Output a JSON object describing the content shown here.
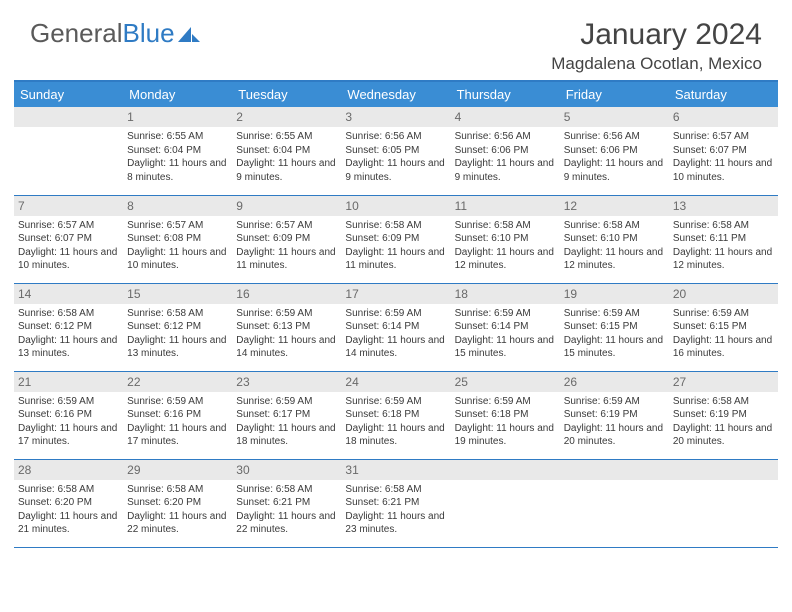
{
  "brand": {
    "part1": "General",
    "part2": "Blue"
  },
  "title": "January 2024",
  "location": "Magdalena Ocotlan, Mexico",
  "styling": {
    "brand_color": "#2f7bc4",
    "header_bg": "#3a8dd4",
    "header_text": "#ffffff",
    "daynum_bg": "#e9e9e9",
    "daynum_text": "#6a6a6a",
    "body_text": "#3a3a3a",
    "cal_border": "#2f7bc4",
    "page_bg": "#ffffff",
    "month_title_fontsize": 30,
    "location_fontsize": 17,
    "th_fontsize": 13,
    "cell_fontsize": 10,
    "daynum_fontsize": 12
  },
  "weekdays": [
    "Sunday",
    "Monday",
    "Tuesday",
    "Wednesday",
    "Thursday",
    "Friday",
    "Saturday"
  ],
  "weeks": [
    [
      null,
      {
        "n": "1",
        "sr": "Sunrise: 6:55 AM",
        "ss": "Sunset: 6:04 PM",
        "dl": "Daylight: 11 hours and 8 minutes."
      },
      {
        "n": "2",
        "sr": "Sunrise: 6:55 AM",
        "ss": "Sunset: 6:04 PM",
        "dl": "Daylight: 11 hours and 9 minutes."
      },
      {
        "n": "3",
        "sr": "Sunrise: 6:56 AM",
        "ss": "Sunset: 6:05 PM",
        "dl": "Daylight: 11 hours and 9 minutes."
      },
      {
        "n": "4",
        "sr": "Sunrise: 6:56 AM",
        "ss": "Sunset: 6:06 PM",
        "dl": "Daylight: 11 hours and 9 minutes."
      },
      {
        "n": "5",
        "sr": "Sunrise: 6:56 AM",
        "ss": "Sunset: 6:06 PM",
        "dl": "Daylight: 11 hours and 9 minutes."
      },
      {
        "n": "6",
        "sr": "Sunrise: 6:57 AM",
        "ss": "Sunset: 6:07 PM",
        "dl": "Daylight: 11 hours and 10 minutes."
      }
    ],
    [
      {
        "n": "7",
        "sr": "Sunrise: 6:57 AM",
        "ss": "Sunset: 6:07 PM",
        "dl": "Daylight: 11 hours and 10 minutes."
      },
      {
        "n": "8",
        "sr": "Sunrise: 6:57 AM",
        "ss": "Sunset: 6:08 PM",
        "dl": "Daylight: 11 hours and 10 minutes."
      },
      {
        "n": "9",
        "sr": "Sunrise: 6:57 AM",
        "ss": "Sunset: 6:09 PM",
        "dl": "Daylight: 11 hours and 11 minutes."
      },
      {
        "n": "10",
        "sr": "Sunrise: 6:58 AM",
        "ss": "Sunset: 6:09 PM",
        "dl": "Daylight: 11 hours and 11 minutes."
      },
      {
        "n": "11",
        "sr": "Sunrise: 6:58 AM",
        "ss": "Sunset: 6:10 PM",
        "dl": "Daylight: 11 hours and 12 minutes."
      },
      {
        "n": "12",
        "sr": "Sunrise: 6:58 AM",
        "ss": "Sunset: 6:10 PM",
        "dl": "Daylight: 11 hours and 12 minutes."
      },
      {
        "n": "13",
        "sr": "Sunrise: 6:58 AM",
        "ss": "Sunset: 6:11 PM",
        "dl": "Daylight: 11 hours and 12 minutes."
      }
    ],
    [
      {
        "n": "14",
        "sr": "Sunrise: 6:58 AM",
        "ss": "Sunset: 6:12 PM",
        "dl": "Daylight: 11 hours and 13 minutes."
      },
      {
        "n": "15",
        "sr": "Sunrise: 6:58 AM",
        "ss": "Sunset: 6:12 PM",
        "dl": "Daylight: 11 hours and 13 minutes."
      },
      {
        "n": "16",
        "sr": "Sunrise: 6:59 AM",
        "ss": "Sunset: 6:13 PM",
        "dl": "Daylight: 11 hours and 14 minutes."
      },
      {
        "n": "17",
        "sr": "Sunrise: 6:59 AM",
        "ss": "Sunset: 6:14 PM",
        "dl": "Daylight: 11 hours and 14 minutes."
      },
      {
        "n": "18",
        "sr": "Sunrise: 6:59 AM",
        "ss": "Sunset: 6:14 PM",
        "dl": "Daylight: 11 hours and 15 minutes."
      },
      {
        "n": "19",
        "sr": "Sunrise: 6:59 AM",
        "ss": "Sunset: 6:15 PM",
        "dl": "Daylight: 11 hours and 15 minutes."
      },
      {
        "n": "20",
        "sr": "Sunrise: 6:59 AM",
        "ss": "Sunset: 6:15 PM",
        "dl": "Daylight: 11 hours and 16 minutes."
      }
    ],
    [
      {
        "n": "21",
        "sr": "Sunrise: 6:59 AM",
        "ss": "Sunset: 6:16 PM",
        "dl": "Daylight: 11 hours and 17 minutes."
      },
      {
        "n": "22",
        "sr": "Sunrise: 6:59 AM",
        "ss": "Sunset: 6:16 PM",
        "dl": "Daylight: 11 hours and 17 minutes."
      },
      {
        "n": "23",
        "sr": "Sunrise: 6:59 AM",
        "ss": "Sunset: 6:17 PM",
        "dl": "Daylight: 11 hours and 18 minutes."
      },
      {
        "n": "24",
        "sr": "Sunrise: 6:59 AM",
        "ss": "Sunset: 6:18 PM",
        "dl": "Daylight: 11 hours and 18 minutes."
      },
      {
        "n": "25",
        "sr": "Sunrise: 6:59 AM",
        "ss": "Sunset: 6:18 PM",
        "dl": "Daylight: 11 hours and 19 minutes."
      },
      {
        "n": "26",
        "sr": "Sunrise: 6:59 AM",
        "ss": "Sunset: 6:19 PM",
        "dl": "Daylight: 11 hours and 20 minutes."
      },
      {
        "n": "27",
        "sr": "Sunrise: 6:58 AM",
        "ss": "Sunset: 6:19 PM",
        "dl": "Daylight: 11 hours and 20 minutes."
      }
    ],
    [
      {
        "n": "28",
        "sr": "Sunrise: 6:58 AM",
        "ss": "Sunset: 6:20 PM",
        "dl": "Daylight: 11 hours and 21 minutes."
      },
      {
        "n": "29",
        "sr": "Sunrise: 6:58 AM",
        "ss": "Sunset: 6:20 PM",
        "dl": "Daylight: 11 hours and 22 minutes."
      },
      {
        "n": "30",
        "sr": "Sunrise: 6:58 AM",
        "ss": "Sunset: 6:21 PM",
        "dl": "Daylight: 11 hours and 22 minutes."
      },
      {
        "n": "31",
        "sr": "Sunrise: 6:58 AM",
        "ss": "Sunset: 6:21 PM",
        "dl": "Daylight: 11 hours and 23 minutes."
      },
      null,
      null,
      null
    ]
  ]
}
